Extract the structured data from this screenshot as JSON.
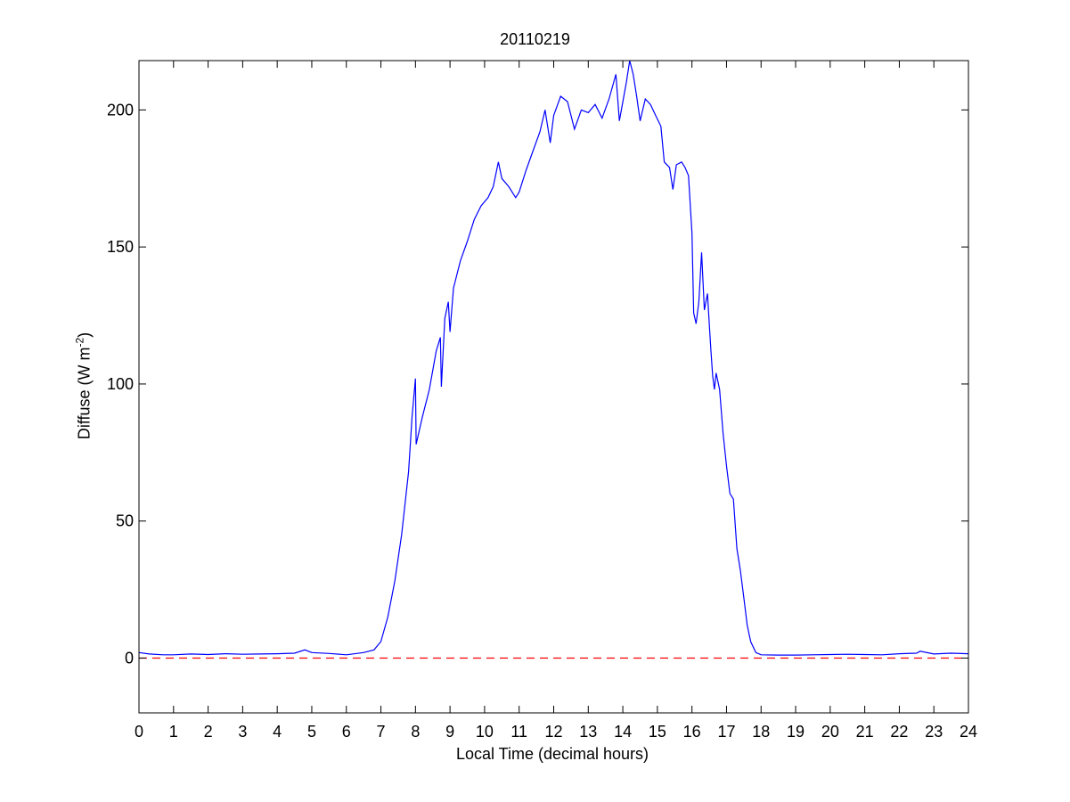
{
  "chart_data": {
    "type": "line",
    "title": "20110219",
    "xlabel": "Local Time (decimal hours)",
    "ylabel": "Diffuse (W m",
    "ylabel_exponent": "-2",
    "ylabel_close": ")",
    "xlim": [
      0,
      24
    ],
    "ylim": [
      -20,
      218
    ],
    "xticks": [
      0,
      1,
      2,
      3,
      4,
      5,
      6,
      7,
      8,
      9,
      10,
      11,
      12,
      13,
      14,
      15,
      16,
      17,
      18,
      19,
      20,
      21,
      22,
      23,
      24
    ],
    "yticks": [
      0,
      50,
      100,
      150,
      200
    ],
    "grid": false,
    "series": [
      {
        "color": "#0000ff",
        "style": "solid",
        "points": [
          [
            0,
            2
          ],
          [
            0.3,
            1.5
          ],
          [
            0.7,
            1.2
          ],
          [
            1,
            1.2
          ],
          [
            1.5,
            1.5
          ],
          [
            2,
            1.3
          ],
          [
            2.5,
            1.6
          ],
          [
            3,
            1.4
          ],
          [
            3.5,
            1.5
          ],
          [
            4,
            1.6
          ],
          [
            4.5,
            1.8
          ],
          [
            4.8,
            3
          ],
          [
            5,
            2
          ],
          [
            5.5,
            1.7
          ],
          [
            6,
            1.2
          ],
          [
            6.5,
            2
          ],
          [
            6.8,
            3
          ],
          [
            7,
            6
          ],
          [
            7.2,
            15
          ],
          [
            7.4,
            28
          ],
          [
            7.6,
            45
          ],
          [
            7.8,
            68
          ],
          [
            7.9,
            88
          ],
          [
            8.0,
            102
          ],
          [
            8.02,
            78
          ],
          [
            8.2,
            88
          ],
          [
            8.4,
            98
          ],
          [
            8.6,
            112
          ],
          [
            8.72,
            117
          ],
          [
            8.75,
            99
          ],
          [
            8.85,
            124
          ],
          [
            8.95,
            130
          ],
          [
            9.0,
            119
          ],
          [
            9.1,
            135
          ],
          [
            9.3,
            145
          ],
          [
            9.5,
            152
          ],
          [
            9.7,
            160
          ],
          [
            9.9,
            165
          ],
          [
            10.1,
            168
          ],
          [
            10.25,
            172
          ],
          [
            10.4,
            181
          ],
          [
            10.5,
            175
          ],
          [
            10.7,
            172
          ],
          [
            10.9,
            168
          ],
          [
            11.0,
            170
          ],
          [
            11.2,
            178
          ],
          [
            11.4,
            185
          ],
          [
            11.6,
            192
          ],
          [
            11.75,
            200
          ],
          [
            11.9,
            188
          ],
          [
            12.0,
            198
          ],
          [
            12.2,
            205
          ],
          [
            12.4,
            203
          ],
          [
            12.6,
            193
          ],
          [
            12.8,
            200
          ],
          [
            13.0,
            199
          ],
          [
            13.2,
            202
          ],
          [
            13.4,
            197
          ],
          [
            13.6,
            204
          ],
          [
            13.8,
            213
          ],
          [
            13.9,
            196
          ],
          [
            14.1,
            210
          ],
          [
            14.2,
            218
          ],
          [
            14.3,
            213
          ],
          [
            14.4,
            205
          ],
          [
            14.5,
            196
          ],
          [
            14.65,
            204
          ],
          [
            14.8,
            202
          ],
          [
            14.95,
            198
          ],
          [
            15.1,
            194
          ],
          [
            15.2,
            181
          ],
          [
            15.35,
            179
          ],
          [
            15.45,
            171
          ],
          [
            15.55,
            180
          ],
          [
            15.7,
            181
          ],
          [
            15.8,
            179
          ],
          [
            15.9,
            176
          ],
          [
            16.0,
            155
          ],
          [
            16.05,
            126
          ],
          [
            16.12,
            122
          ],
          [
            16.2,
            130
          ],
          [
            16.28,
            148
          ],
          [
            16.36,
            127
          ],
          [
            16.45,
            133
          ],
          [
            16.5,
            122
          ],
          [
            16.55,
            112
          ],
          [
            16.6,
            103
          ],
          [
            16.65,
            98
          ],
          [
            16.7,
            104
          ],
          [
            16.8,
            98
          ],
          [
            16.9,
            82
          ],
          [
            17.0,
            70
          ],
          [
            17.1,
            60
          ],
          [
            17.2,
            58
          ],
          [
            17.3,
            40
          ],
          [
            17.4,
            32
          ],
          [
            17.5,
            22
          ],
          [
            17.6,
            12
          ],
          [
            17.7,
            6
          ],
          [
            17.85,
            2
          ],
          [
            18.0,
            1.2
          ],
          [
            18.5,
            1.1
          ],
          [
            19,
            1.1
          ],
          [
            19.5,
            1.2
          ],
          [
            20,
            1.3
          ],
          [
            20.5,
            1.4
          ],
          [
            21,
            1.3
          ],
          [
            21.5,
            1.2
          ],
          [
            22,
            1.6
          ],
          [
            22.5,
            1.8
          ],
          [
            22.6,
            2.5
          ],
          [
            23,
            1.5
          ],
          [
            23.5,
            1.8
          ],
          [
            24,
            1.6
          ]
        ]
      },
      {
        "color": "#ff0000",
        "style": "dashed",
        "points": [
          [
            0,
            0
          ],
          [
            24,
            0
          ]
        ]
      }
    ]
  }
}
